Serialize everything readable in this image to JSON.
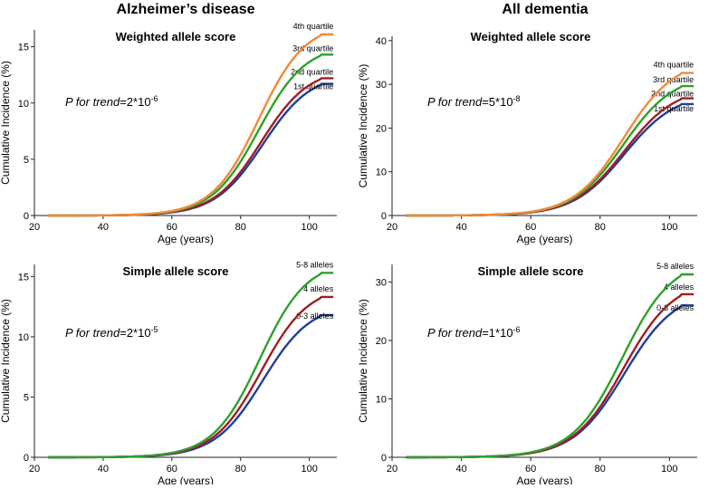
{
  "column_titles": [
    "Alzheimer’s disease",
    "All dementia"
  ],
  "colors": {
    "q1": "#1f3f9a",
    "q2": "#a01e23",
    "q3": "#2fa02c",
    "q4": "#f08a3a",
    "axis": "#222222"
  },
  "chart_data": [
    {
      "type": "line",
      "title": "Weighted allele score",
      "xlabel": "Age (years)",
      "ylabel": "Cumulative Incidence (%)",
      "xlim": [
        20,
        108
      ],
      "ylim": [
        0,
        16.5
      ],
      "xticks": [
        20,
        40,
        60,
        80,
        100
      ],
      "yticks": [
        0,
        5,
        10,
        15
      ],
      "annotation": {
        "prefix": "P for trend",
        "base": "=2*10",
        "exp": "-6"
      },
      "series": [
        {
          "name": "1st quartile",
          "color_key": "q1",
          "final": 11.7,
          "mid": 86.5,
          "width": 7.0
        },
        {
          "name": "2nd quartile",
          "color_key": "q2",
          "final": 12.2,
          "mid": 86.0,
          "width": 6.9
        },
        {
          "name": "3rd quartile",
          "color_key": "q3",
          "final": 14.3,
          "mid": 85.3,
          "width": 6.8
        },
        {
          "name": "4th quartile",
          "color_key": "q4",
          "final": 16.1,
          "mid": 85.3,
          "width": 6.8
        }
      ],
      "x_start": 24,
      "x_end": 107
    },
    {
      "type": "line",
      "title": "Weighted allele score",
      "xlabel": "Age (years)",
      "ylabel": "Cumulative Incidence (%)",
      "xlim": [
        20,
        108
      ],
      "ylim": [
        0,
        41
      ],
      "xticks": [
        20,
        40,
        60,
        80,
        100
      ],
      "yticks": [
        0,
        10,
        20,
        30,
        40
      ],
      "annotation": {
        "prefix": "P for trend",
        "base": "=5*10",
        "exp": "-8"
      },
      "series": [
        {
          "name": "1st quartile",
          "color_key": "q1",
          "final": 25.5,
          "mid": 87.0,
          "width": 7.4
        },
        {
          "name": "2nd quartile",
          "color_key": "q2",
          "final": 26.8,
          "mid": 87.0,
          "width": 7.4
        },
        {
          "name": "3rd quartile",
          "color_key": "q3",
          "final": 29.6,
          "mid": 86.7,
          "width": 7.3
        },
        {
          "name": "4th quartile",
          "color_key": "q4",
          "final": 32.6,
          "mid": 86.9,
          "width": 7.3
        }
      ],
      "x_start": 24,
      "x_end": 107
    },
    {
      "type": "line",
      "title": "Simple allele score",
      "xlabel": "Age (years)",
      "ylabel": "Cumulative Incidence (%)",
      "xlim": [
        20,
        108
      ],
      "ylim": [
        0,
        16
      ],
      "xticks": [
        20,
        40,
        60,
        80,
        100
      ],
      "yticks": [
        0,
        5,
        10,
        15
      ],
      "annotation": {
        "prefix": "P for trend",
        "base": "=2*10",
        "exp": "-5"
      },
      "series": [
        {
          "name": "0-3 alleles",
          "color_key": "q1",
          "final": 11.8,
          "mid": 86.5,
          "width": 7.0
        },
        {
          "name": "4 alleles",
          "color_key": "q2",
          "final": 13.3,
          "mid": 86.0,
          "width": 6.9
        },
        {
          "name": "5-8 alleles",
          "color_key": "q3",
          "final": 15.3,
          "mid": 85.6,
          "width": 6.8
        }
      ],
      "x_start": 24,
      "x_end": 107
    },
    {
      "type": "line",
      "title": "Simple allele score",
      "xlabel": "Age (years)",
      "ylabel": "Cumulative Incidence (%)",
      "xlim": [
        20,
        108
      ],
      "ylim": [
        0,
        33
      ],
      "xticks": [
        20,
        40,
        60,
        80,
        100
      ],
      "yticks": [
        0,
        10,
        20,
        30
      ],
      "annotation": {
        "prefix": "P for trend",
        "base": "=1*10",
        "exp": "-6"
      },
      "series": [
        {
          "name": "0-3 alleles",
          "color_key": "q1",
          "final": 26.0,
          "mid": 87.0,
          "width": 7.4
        },
        {
          "name": "4 alleles",
          "color_key": "q2",
          "final": 27.9,
          "mid": 86.8,
          "width": 7.3
        },
        {
          "name": "5-8 alleles",
          "color_key": "q3",
          "final": 31.3,
          "mid": 86.4,
          "width": 7.2
        }
      ],
      "x_start": 24,
      "x_end": 107
    }
  ]
}
